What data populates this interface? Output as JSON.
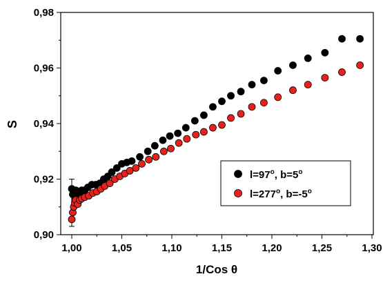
{
  "chart_data": {
    "type": "scatter",
    "xlabel": "1/Cos θ",
    "ylabel": "S",
    "xlim": [
      0.99,
      1.3
    ],
    "ylim": [
      0.9,
      0.98
    ],
    "x_ticks": [
      "1,00",
      "1,05",
      "1,10",
      "1,15",
      "1,20",
      "1,25",
      "1,30"
    ],
    "y_ticks": [
      "0,90",
      "0,92",
      "0,94",
      "0,96",
      "0,98"
    ],
    "legend_position": "lower-right",
    "series": [
      {
        "name_main": "l=97",
        "name_sup1": "o",
        "name_mid": ", b=5",
        "name_sup2": "o",
        "color": "#000000",
        "points": [
          [
            1.0,
            0.9165
          ],
          [
            1.001,
            0.9145
          ],
          [
            1.002,
            0.915
          ],
          [
            1.003,
            0.914
          ],
          [
            1.004,
            0.916
          ],
          [
            1.006,
            0.9155
          ],
          [
            1.008,
            0.915
          ],
          [
            1.01,
            0.916
          ],
          [
            1.013,
            0.916
          ],
          [
            1.016,
            0.917
          ],
          [
            1.02,
            0.918
          ],
          [
            1.024,
            0.918
          ],
          [
            1.028,
            0.9185
          ],
          [
            1.032,
            0.92
          ],
          [
            1.036,
            0.921
          ],
          [
            1.04,
            0.9225
          ],
          [
            1.045,
            0.924
          ],
          [
            1.05,
            0.9255
          ],
          [
            1.055,
            0.926
          ],
          [
            1.06,
            0.9265
          ],
          [
            1.068,
            0.928
          ],
          [
            1.076,
            0.93
          ],
          [
            1.083,
            0.932
          ],
          [
            1.091,
            0.934
          ],
          [
            1.098,
            0.9355
          ],
          [
            1.106,
            0.9365
          ],
          [
            1.114,
            0.9385
          ],
          [
            1.123,
            0.941
          ],
          [
            1.132,
            0.943
          ],
          [
            1.141,
            0.946
          ],
          [
            1.15,
            0.948
          ],
          [
            1.159,
            0.95
          ],
          [
            1.169,
            0.9515
          ],
          [
            1.18,
            0.954
          ],
          [
            1.192,
            0.9555
          ],
          [
            1.206,
            0.959
          ],
          [
            1.221,
            0.961
          ],
          [
            1.236,
            0.9635
          ],
          [
            1.253,
            0.9655
          ],
          [
            1.27,
            0.9705
          ],
          [
            1.288,
            0.9705
          ]
        ]
      },
      {
        "name_main": "l=277",
        "name_sup1": "o",
        "name_mid": ", b=-5",
        "name_sup2": "o",
        "color": "#e8211d",
        "points": [
          [
            1.0,
            0.9055
          ],
          [
            1.001,
            0.908
          ],
          [
            1.002,
            0.91
          ],
          [
            1.003,
            0.9115
          ],
          [
            1.004,
            0.9125
          ],
          [
            1.006,
            0.911
          ],
          [
            1.008,
            0.9125
          ],
          [
            1.01,
            0.913
          ],
          [
            1.013,
            0.9135
          ],
          [
            1.017,
            0.914
          ],
          [
            1.021,
            0.915
          ],
          [
            1.025,
            0.9155
          ],
          [
            1.029,
            0.9165
          ],
          [
            1.033,
            0.9175
          ],
          [
            1.038,
            0.9185
          ],
          [
            1.043,
            0.92
          ],
          [
            1.048,
            0.921
          ],
          [
            1.053,
            0.922
          ],
          [
            1.058,
            0.923
          ],
          [
            1.064,
            0.924
          ],
          [
            1.07,
            0.9255
          ],
          [
            1.077,
            0.927
          ],
          [
            1.084,
            0.928
          ],
          [
            1.092,
            0.93
          ],
          [
            1.099,
            0.931
          ],
          [
            1.107,
            0.933
          ],
          [
            1.115,
            0.9345
          ],
          [
            1.124,
            0.936
          ],
          [
            1.132,
            0.937
          ],
          [
            1.141,
            0.9385
          ],
          [
            1.15,
            0.9395
          ],
          [
            1.159,
            0.942
          ],
          [
            1.169,
            0.9435
          ],
          [
            1.18,
            0.946
          ],
          [
            1.192,
            0.9475
          ],
          [
            1.206,
            0.9495
          ],
          [
            1.221,
            0.952
          ],
          [
            1.236,
            0.954
          ],
          [
            1.253,
            0.9565
          ],
          [
            1.27,
            0.9585
          ],
          [
            1.288,
            0.961
          ]
        ]
      }
    ],
    "error_bar": {
      "x": 1.0,
      "y": 0.9125,
      "low": 0.903,
      "high": 0.92
    }
  }
}
